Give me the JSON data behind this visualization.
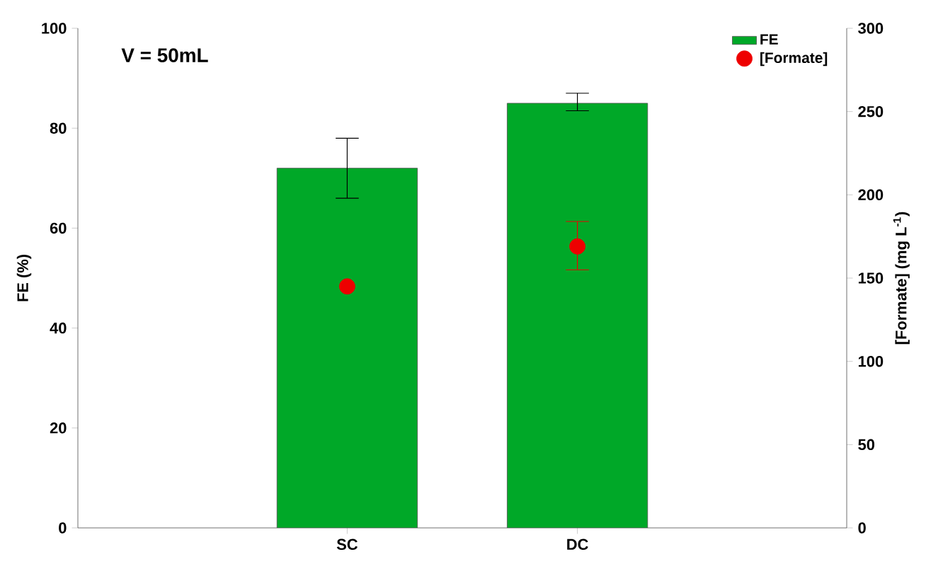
{
  "chart_data": {
    "type": "bar",
    "categories": [
      "SC",
      "DC"
    ],
    "ylabel": "FE (%)",
    "y2label": "[Formate] (mg L$^{-1}$)",
    "ylim": [
      0,
      100
    ],
    "yticks": [
      0,
      20,
      40,
      60,
      80,
      100
    ],
    "y2lim": [
      0,
      300
    ],
    "y2ticks": [
      0,
      50,
      100,
      150,
      200,
      250,
      300
    ],
    "legend": "top right",
    "annotations": [
      "V = 50mL"
    ],
    "series": [
      {
        "name": "FE",
        "color": "#00a828",
        "values": [
          72,
          85
        ],
        "errors": [
          [
            66,
            78
          ],
          [
            83.5,
            87
          ]
        ]
      },
      {
        "name": "[Formate]",
        "type": "scatter",
        "axis": "y2",
        "color": "#ee0000",
        "values": [
          145,
          169
        ],
        "errors": [
          null,
          [
            155,
            184
          ]
        ]
      }
    ]
  }
}
